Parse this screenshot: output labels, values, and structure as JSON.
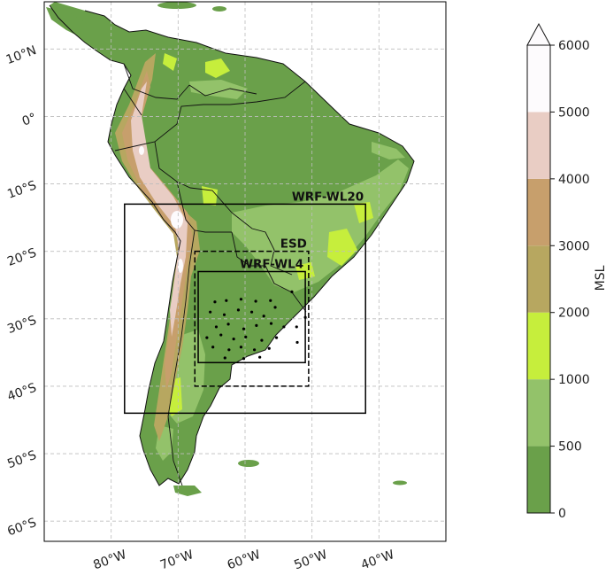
{
  "colors": {
    "ocean": "#ffffff",
    "gridline": "#bdbdbd",
    "land_0_500": "#6aa04a",
    "land_500_1000": "#93c26a",
    "land_1000_2000": "#c6ee3c",
    "land_2000_3000": "#b7a760",
    "land_3000_4000": "#c79f6c",
    "land_4000_5000": "#e9cdc4",
    "land_5000_6000": "#fdfbfd",
    "boxes": "#000000",
    "stations": "#000000"
  },
  "map": {
    "projection": "PlateCarree",
    "lon_range": [
      -90,
      -30
    ],
    "lat_range": [
      -63,
      17
    ],
    "lon_ticks": [
      {
        "value": -80,
        "label": "80°W"
      },
      {
        "value": -70,
        "label": "70°W"
      },
      {
        "value": -60,
        "label": "60°W"
      },
      {
        "value": -50,
        "label": "50°W"
      },
      {
        "value": -40,
        "label": "40°W"
      }
    ],
    "lat_ticks": [
      {
        "value": 10,
        "label": "10°N"
      },
      {
        "value": 0,
        "label": "0°"
      },
      {
        "value": -10,
        "label": "10°S"
      },
      {
        "value": -20,
        "label": "20°S"
      },
      {
        "value": -30,
        "label": "30°S"
      },
      {
        "value": -40,
        "label": "40°S"
      },
      {
        "value": -50,
        "label": "50°S"
      },
      {
        "value": -60,
        "label": "60°S"
      }
    ],
    "grid": true,
    "domains": [
      {
        "label": "WRF-WL20",
        "lon": [
          -78,
          -42
        ],
        "lat": [
          -44,
          -13
        ],
        "style": "solid"
      },
      {
        "label": "ESD",
        "lon": [
          -67.5,
          -50.5
        ],
        "lat": [
          -40,
          -20
        ],
        "style": "dashed"
      },
      {
        "label": "WRF-WL4",
        "lon": [
          -67,
          -51
        ],
        "lat": [
          -36.5,
          -23
        ],
        "style": "solid"
      }
    ],
    "stations": [
      [
        -64.5,
        -27.5
      ],
      [
        -62.8,
        -27.3
      ],
      [
        -60.6,
        -27.1
      ],
      [
        -58.4,
        -27.4
      ],
      [
        -56.2,
        -27.3
      ],
      [
        -65.2,
        -29.0
      ],
      [
        -63.1,
        -29.4
      ],
      [
        -61.0,
        -28.7
      ],
      [
        -59.0,
        -29.0
      ],
      [
        -57.2,
        -29.6
      ],
      [
        -55.5,
        -28.3
      ],
      [
        -64.3,
        -31.2
      ],
      [
        -62.5,
        -30.8
      ],
      [
        -60.2,
        -31.5
      ],
      [
        -58.3,
        -31.0
      ],
      [
        -56.1,
        -30.7
      ],
      [
        -54.2,
        -31.2
      ],
      [
        -65.7,
        -32.8
      ],
      [
        -63.6,
        -32.4
      ],
      [
        -61.7,
        -33.0
      ],
      [
        -59.9,
        -32.7
      ],
      [
        -57.5,
        -33.2
      ],
      [
        -55.3,
        -32.8
      ],
      [
        -64.8,
        -34.2
      ],
      [
        -62.4,
        -34.6
      ],
      [
        -60.6,
        -34.2
      ],
      [
        -58.6,
        -34.6
      ],
      [
        -56.4,
        -34.4
      ],
      [
        -63.0,
        -35.8
      ],
      [
        -60.2,
        -35.9
      ],
      [
        -57.8,
        -35.7
      ],
      [
        -52.3,
        -31.2
      ],
      [
        -53.0,
        -26.0
      ],
      [
        -51.0,
        -29.8
      ],
      [
        -52.2,
        -33.5
      ]
    ]
  },
  "colorbar": {
    "label": "MSL",
    "levels": [
      0,
      500,
      1000,
      2000,
      3000,
      4000,
      5000,
      6000
    ],
    "tick_labels": [
      "0",
      "500",
      "1000",
      "2000",
      "3000",
      "4000",
      "5000",
      "6000"
    ],
    "extend": "max"
  }
}
